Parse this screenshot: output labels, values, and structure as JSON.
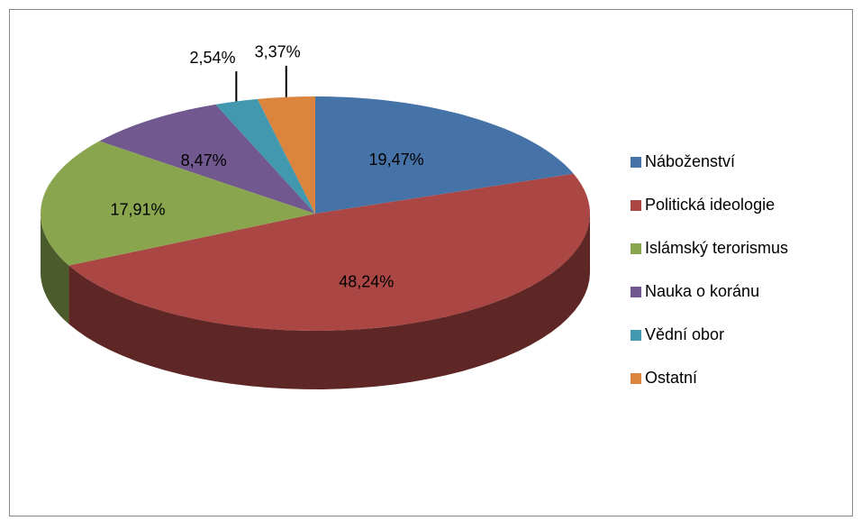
{
  "chart_data": {
    "type": "pie3d",
    "categories": [
      "Náboženství",
      "Politická ideologie",
      "Islámský terorismus",
      "Nauka o koránu",
      "Vědní obor",
      "Ostatní"
    ],
    "values": [
      19.47,
      48.24,
      17.91,
      8.47,
      2.54,
      3.37
    ],
    "value_labels": [
      "19,47%",
      "48,24%",
      "17,91%",
      "8,47%",
      "2,54%",
      "3,37%"
    ],
    "colors": [
      "#4572a7",
      "#aa4643",
      "#89a54e",
      "#71588f",
      "#4198af",
      "#db843d"
    ],
    "legend": "right"
  }
}
